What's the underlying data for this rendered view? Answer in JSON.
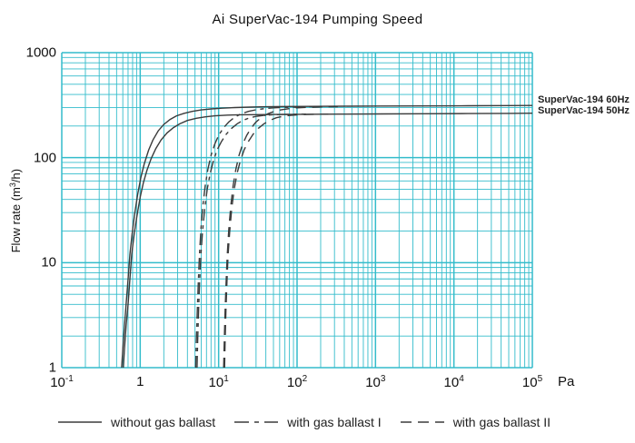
{
  "title": "Ai SuperVac-194 Pumping Speed",
  "colors": {
    "grid": "#33bccb",
    "curve": "#3b3b3b",
    "text": "#111111",
    "background": "#ffffff"
  },
  "y_axis": {
    "label_pre": "Flow rate (m",
    "label_sup": "3",
    "label_post": "/h)",
    "ticks": [
      {
        "label": "1000",
        "value": 1000
      },
      {
        "label": "100",
        "value": 100
      },
      {
        "label": "10",
        "value": 10
      },
      {
        "label": "1",
        "value": 1
      }
    ]
  },
  "x_axis": {
    "unit": "Pa",
    "ticks": [
      {
        "base": "10",
        "exp": "-1",
        "value": 0.1
      },
      {
        "base": "1",
        "exp": "",
        "value": 1
      },
      {
        "base": "10",
        "exp": "1",
        "value": 10
      },
      {
        "base": "10",
        "exp": "2",
        "value": 100
      },
      {
        "base": "10",
        "exp": "3",
        "value": 1000
      },
      {
        "base": "10",
        "exp": "4",
        "value": 10000
      },
      {
        "base": "10",
        "exp": "5",
        "value": 100000
      }
    ]
  },
  "curve_labels": [
    {
      "text": "SuperVac-194 60Hz"
    },
    {
      "text": "SuperVac-194 50Hz"
    }
  ],
  "legend": {
    "items": [
      {
        "label": "without gas ballast",
        "style": "solid"
      },
      {
        "label": "with gas ballast I",
        "style": "dashdot"
      },
      {
        "label": "with gas ballast II",
        "style": "dashed"
      }
    ]
  },
  "chart_data": {
    "type": "line",
    "title": "Ai SuperVac-194 Pumping Speed",
    "xlabel": "Pa",
    "ylabel": "Flow rate (m3/h)",
    "x_scale": "log",
    "y_scale": "log",
    "xlim": [
      0.1,
      100000
    ],
    "ylim": [
      1,
      1000
    ],
    "grid": "major and minor log grid, cyan, both axes",
    "legend_position": "bottom",
    "series": [
      {
        "name": "SuperVac-194 60Hz, without gas ballast",
        "style": "solid",
        "points": [
          [
            0.58,
            1
          ],
          [
            0.6,
            1.5
          ],
          [
            0.63,
            2.5
          ],
          [
            0.66,
            4
          ],
          [
            0.7,
            7
          ],
          [
            0.74,
            12
          ],
          [
            0.79,
            19
          ],
          [
            0.85,
            29
          ],
          [
            0.93,
            45
          ],
          [
            1.02,
            65
          ],
          [
            1.13,
            88
          ],
          [
            1.28,
            118
          ],
          [
            1.45,
            147
          ],
          [
            1.7,
            180
          ],
          [
            2.0,
            207
          ],
          [
            2.4,
            231
          ],
          [
            2.9,
            250
          ],
          [
            3.6,
            264
          ],
          [
            4.6,
            276
          ],
          [
            6,
            285
          ],
          [
            8,
            291
          ],
          [
            11,
            296
          ],
          [
            16,
            300
          ],
          [
            25,
            303
          ],
          [
            40,
            305
          ],
          [
            70,
            307
          ],
          [
            150,
            308
          ],
          [
            400,
            309
          ],
          [
            1200,
            310
          ],
          [
            4000,
            311
          ],
          [
            15000,
            312
          ],
          [
            50000,
            313
          ],
          [
            100000,
            314
          ]
        ]
      },
      {
        "name": "SuperVac-194 50Hz, without gas ballast",
        "style": "solid",
        "points": [
          [
            0.61,
            1
          ],
          [
            0.63,
            1.5
          ],
          [
            0.66,
            2.5
          ],
          [
            0.7,
            4
          ],
          [
            0.74,
            7
          ],
          [
            0.78,
            12
          ],
          [
            0.84,
            19
          ],
          [
            0.91,
            28
          ],
          [
            1.0,
            42
          ],
          [
            1.1,
            58
          ],
          [
            1.22,
            76
          ],
          [
            1.38,
            98
          ],
          [
            1.58,
            122
          ],
          [
            1.85,
            148
          ],
          [
            2.2,
            172
          ],
          [
            2.65,
            193
          ],
          [
            3.2,
            210
          ],
          [
            4,
            226
          ],
          [
            5.2,
            237
          ],
          [
            6.8,
            245
          ],
          [
            9,
            250
          ],
          [
            13,
            254
          ],
          [
            19,
            256
          ],
          [
            30,
            257
          ],
          [
            55,
            258
          ],
          [
            120,
            259
          ],
          [
            350,
            260
          ],
          [
            1200,
            261
          ],
          [
            4000,
            262
          ],
          [
            15000,
            263
          ],
          [
            50000,
            264
          ],
          [
            100000,
            265
          ]
        ]
      },
      {
        "name": "SuperVac-194 60Hz, with gas ballast I",
        "style": "dashdot",
        "points": [
          [
            5.1,
            1
          ],
          [
            5.2,
            1.8
          ],
          [
            5.35,
            3.5
          ],
          [
            5.5,
            6.5
          ],
          [
            5.7,
            12
          ],
          [
            5.95,
            21
          ],
          [
            6.3,
            35
          ],
          [
            6.75,
            54
          ],
          [
            7.3,
            78
          ],
          [
            8,
            105
          ],
          [
            8.9,
            134
          ],
          [
            10,
            163
          ],
          [
            11.5,
            192
          ],
          [
            13.5,
            219
          ],
          [
            16,
            243
          ],
          [
            19.5,
            262
          ],
          [
            24,
            276
          ],
          [
            30,
            286
          ],
          [
            38,
            293
          ],
          [
            50,
            298
          ],
          [
            68,
            301
          ],
          [
            95,
            303
          ],
          [
            140,
            305
          ],
          [
            200,
            306
          ]
        ]
      },
      {
        "name": "SuperVac-194 50Hz, with gas ballast I",
        "style": "dashdot",
        "points": [
          [
            5.3,
            1
          ],
          [
            5.4,
            1.8
          ],
          [
            5.55,
            3.5
          ],
          [
            5.72,
            6.5
          ],
          [
            5.95,
            12
          ],
          [
            6.25,
            20
          ],
          [
            6.65,
            33
          ],
          [
            7.15,
            50
          ],
          [
            7.8,
            71
          ],
          [
            8.6,
            94
          ],
          [
            9.6,
            119
          ],
          [
            10.9,
            143
          ],
          [
            12.5,
            167
          ],
          [
            14.6,
            190
          ],
          [
            17.2,
            210
          ],
          [
            20.5,
            227
          ],
          [
            25,
            240
          ],
          [
            31,
            248
          ],
          [
            39,
            253
          ],
          [
            50,
            256
          ],
          [
            66,
            258
          ],
          [
            90,
            259
          ],
          [
            130,
            260
          ]
        ]
      },
      {
        "name": "SuperVac-194 60Hz, with gas ballast II",
        "style": "dashed",
        "points": [
          [
            11.6,
            1
          ],
          [
            11.8,
            1.8
          ],
          [
            12.1,
            3.5
          ],
          [
            12.45,
            6.5
          ],
          [
            12.9,
            12
          ],
          [
            13.5,
            21
          ],
          [
            14.3,
            35
          ],
          [
            15.3,
            54
          ],
          [
            16.6,
            78
          ],
          [
            18.2,
            105
          ],
          [
            20.2,
            134
          ],
          [
            22.8,
            163
          ],
          [
            26,
            192
          ],
          [
            30,
            219
          ],
          [
            35.5,
            243
          ],
          [
            42.5,
            262
          ],
          [
            51.5,
            276
          ],
          [
            63,
            286
          ],
          [
            79,
            293
          ],
          [
            100,
            298
          ],
          [
            130,
            301
          ],
          [
            175,
            303
          ],
          [
            240,
            305
          ],
          [
            330,
            306
          ]
        ]
      },
      {
        "name": "SuperVac-194 50Hz, with gas ballast II",
        "style": "dashed",
        "points": [
          [
            11.9,
            1
          ],
          [
            12.1,
            1.8
          ],
          [
            12.4,
            3.5
          ],
          [
            12.75,
            6.5
          ],
          [
            13.2,
            12
          ],
          [
            13.85,
            20
          ],
          [
            14.7,
            33
          ],
          [
            15.8,
            50
          ],
          [
            17.2,
            71
          ],
          [
            19,
            94
          ],
          [
            21.2,
            119
          ],
          [
            24,
            143
          ],
          [
            27.5,
            167
          ],
          [
            32,
            190
          ],
          [
            37.8,
            210
          ],
          [
            45,
            227
          ],
          [
            54.5,
            240
          ],
          [
            67,
            248
          ],
          [
            83,
            253
          ],
          [
            105,
            256
          ],
          [
            135,
            258
          ],
          [
            180,
            259
          ],
          [
            250,
            260
          ]
        ]
      }
    ]
  }
}
